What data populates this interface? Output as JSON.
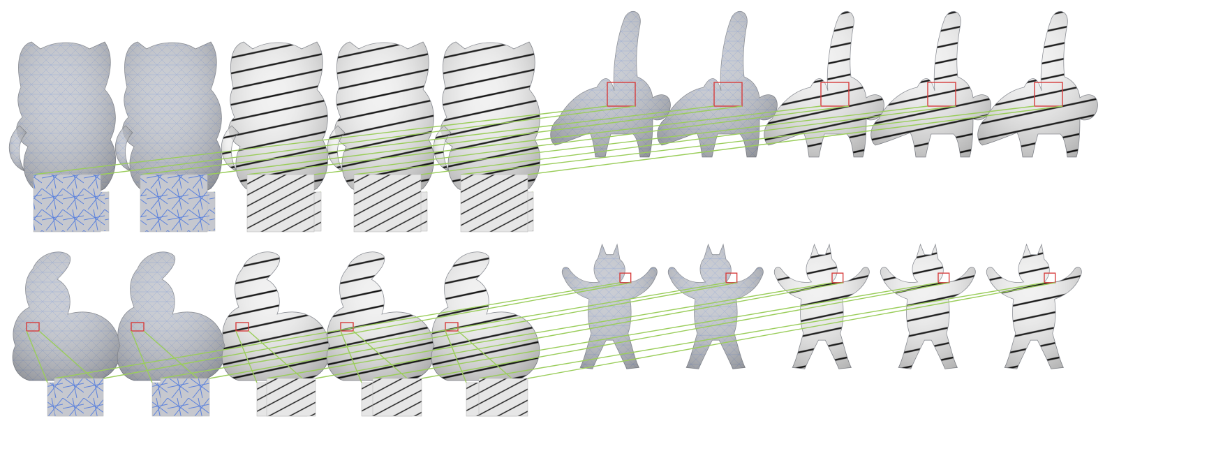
{
  "figure": {
    "description_visible_text": "",
    "colors": {
      "background": "#ffffff",
      "mesh_fill": "#c9ccd3",
      "mesh_shadow": "#9aa0ab",
      "wireframe": "#4f7fe0",
      "stripe_fill": "#f2f2f2",
      "stripe_line": "#1a1a1a",
      "highlight_box": "#d63b3b",
      "callout_line": "#9acd5a"
    },
    "columns": [
      "mesh-wireframe-a",
      "mesh-wireframe-b",
      "stripes-a",
      "stripes-b",
      "stripes-c"
    ],
    "panels": [
      {
        "model": "kitten-icon",
        "row": 0,
        "group": 0
      },
      {
        "model": "elephant-icon",
        "row": 0,
        "group": 1
      },
      {
        "model": "bunny-icon",
        "row": 1,
        "group": 0
      },
      {
        "model": "armadillo-icon",
        "row": 1,
        "group": 1
      }
    ]
  }
}
